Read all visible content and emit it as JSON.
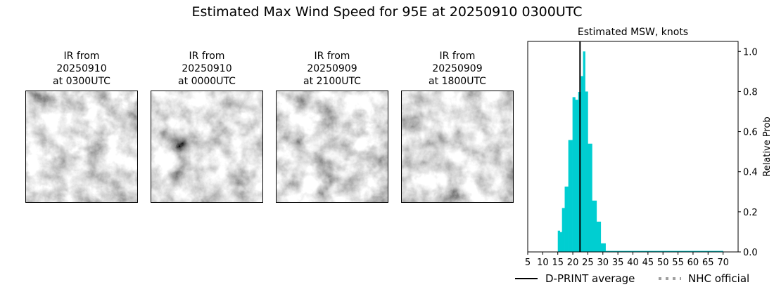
{
  "title": "Estimated Max Wind Speed for 95E at 20250910 0300UTC",
  "panels": [
    {
      "line1": "IR from",
      "line2": "20250910",
      "line3": "at 0300UTC",
      "seed": 3
    },
    {
      "line1": "IR from",
      "line2": "20250910",
      "line3": "at 0000UTC",
      "seed": 7
    },
    {
      "line1": "IR from",
      "line2": "20250909",
      "line3": "at 2100UTC",
      "seed": 11
    },
    {
      "line1": "IR from",
      "line2": "20250909",
      "line3": "at 1800UTC",
      "seed": 19
    }
  ],
  "chart_data": {
    "type": "bar",
    "title": "Estimated MSW, knots",
    "xlabel": "",
    "ylabel": "Relative Prob",
    "xlim": [
      5,
      75
    ],
    "ylim": [
      0,
      1.05
    ],
    "xticks": [
      5,
      10,
      15,
      20,
      25,
      30,
      35,
      40,
      45,
      50,
      55,
      60,
      65,
      70
    ],
    "yticks": [
      0.0,
      0.2,
      0.4,
      0.6,
      0.8,
      1.0
    ],
    "yaxis_side": "right",
    "bar_color": "#00ced1",
    "bins": [
      {
        "from": 15.0,
        "to": 15.7,
        "value": 0.106
      },
      {
        "from": 15.7,
        "to": 16.4,
        "value": 0.099
      },
      {
        "from": 16.4,
        "to": 17.3,
        "value": 0.219
      },
      {
        "from": 17.3,
        "to": 18.5,
        "value": 0.326
      },
      {
        "from": 18.5,
        "to": 19.9,
        "value": 0.558
      },
      {
        "from": 19.9,
        "to": 20.8,
        "value": 0.772
      },
      {
        "from": 20.8,
        "to": 21.8,
        "value": 0.759
      },
      {
        "from": 21.8,
        "to": 22.7,
        "value": 0.798
      },
      {
        "from": 22.7,
        "to": 23.4,
        "value": 0.877
      },
      {
        "from": 23.4,
        "to": 24.1,
        "value": 1.0
      },
      {
        "from": 24.1,
        "to": 25.0,
        "value": 0.8
      },
      {
        "from": 25.0,
        "to": 26.4,
        "value": 0.54
      },
      {
        "from": 26.4,
        "to": 27.9,
        "value": 0.256
      },
      {
        "from": 27.9,
        "to": 29.3,
        "value": 0.151
      },
      {
        "from": 29.3,
        "to": 30.9,
        "value": 0.043
      },
      {
        "from": 30.9,
        "to": 70.0,
        "value": 0.005
      }
    ],
    "dprint_average": 22.4,
    "dprint_color": "#000000",
    "legend": [
      {
        "label": "D-PRINT average",
        "style": "solid",
        "color": "#000000"
      },
      {
        "label": "NHC official",
        "style": "dotted",
        "color": "#a0a0a0"
      }
    ],
    "legend_placement": "bottom"
  }
}
